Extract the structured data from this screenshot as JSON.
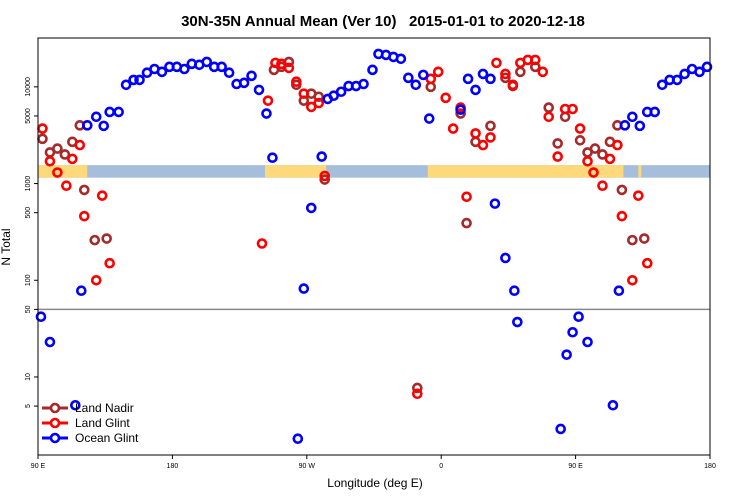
{
  "chart_data": {
    "type": "scatter",
    "title": "30N-35N Annual Mean (Ver 10)   2015-01-01 to 2020-12-18",
    "xlabel": "Longitude (deg E)",
    "ylabel": "N Total",
    "x_units": "degrees east, unwrapped (90 E through 180 through 0 to 180 again)",
    "xlim": [
      90,
      540
    ],
    "ylim": [
      1.56,
      32000
    ],
    "y_scale": "log",
    "x_ticks": [
      {
        "value": 90,
        "label": "90 E"
      },
      {
        "value": 180,
        "label": "180"
      },
      {
        "value": 270,
        "label": "90 W"
      },
      {
        "value": 360,
        "label": "0"
      },
      {
        "value": 450,
        "label": "90 E"
      },
      {
        "value": 540,
        "label": "180"
      }
    ],
    "y_ticks": [
      {
        "value": 5,
        "label": "5"
      },
      {
        "value": 10,
        "label": "10"
      },
      {
        "value": 50,
        "label": "50"
      },
      {
        "value": 100,
        "label": "100"
      },
      {
        "value": 500,
        "label": "500"
      },
      {
        "value": 1000,
        "label": "1000"
      },
      {
        "value": 5000,
        "label": "5000"
      },
      {
        "value": 10000,
        "label": "10000"
      }
    ],
    "reference_line": {
      "y": 50,
      "color": "#888888"
    },
    "land_mask": {
      "y_range": [
        1150,
        1550
      ],
      "land_color": "#FDD97C",
      "ocean_color": "#A6BDDB",
      "land_segments": [
        [
          90,
          123
        ],
        [
          242,
          283
        ],
        [
          351,
          482
        ],
        [
          492,
          494
        ]
      ]
    },
    "legend": {
      "position": "bottom-left"
    },
    "series": [
      {
        "name": "Land Nadir",
        "color": "#A52A2A",
        "points": [
          [
            93,
            2900
          ],
          [
            98,
            2100
          ],
          [
            103,
            2300
          ],
          [
            108,
            2000
          ],
          [
            113,
            2700
          ],
          [
            118,
            4000
          ],
          [
            121,
            860
          ],
          [
            128,
            260
          ],
          [
            136,
            270
          ],
          [
            248,
            15000
          ],
          [
            253,
            16100
          ],
          [
            258,
            18100
          ],
          [
            263,
            10500
          ],
          [
            268,
            7200
          ],
          [
            273,
            8500
          ],
          [
            278,
            7900
          ],
          [
            282,
            1100
          ],
          [
            344,
            7.7
          ],
          [
            353,
            10000
          ],
          [
            373,
            5300
          ],
          [
            377,
            390
          ],
          [
            383,
            2700
          ],
          [
            393,
            3950
          ],
          [
            403,
            12400
          ],
          [
            408,
            10200
          ],
          [
            413,
            14300
          ],
          [
            423,
            16100
          ],
          [
            432,
            6100
          ],
          [
            438,
            2600
          ],
          [
            443,
            4900
          ],
          [
            453,
            2800
          ],
          [
            458,
            2100
          ],
          [
            463,
            2300
          ],
          [
            468,
            2000
          ],
          [
            473,
            2700
          ],
          [
            478,
            4000
          ],
          [
            481,
            860
          ],
          [
            488,
            260
          ],
          [
            496,
            270
          ]
        ]
      },
      {
        "name": "Land Glint",
        "color": "#FF0000",
        "points": [
          [
            93,
            3700
          ],
          [
            98,
            1700
          ],
          [
            103,
            1300
          ],
          [
            109,
            950
          ],
          [
            113,
            1800
          ],
          [
            118,
            2500
          ],
          [
            121,
            460
          ],
          [
            129,
            100
          ],
          [
            133,
            750
          ],
          [
            138,
            150
          ],
          [
            240,
            240
          ],
          [
            244,
            7200
          ],
          [
            249,
            17700
          ],
          [
            253,
            17300
          ],
          [
            258,
            15700
          ],
          [
            263,
            11300
          ],
          [
            268,
            8500
          ],
          [
            273,
            6200
          ],
          [
            278,
            6800
          ],
          [
            282,
            1200
          ],
          [
            344,
            6.7
          ],
          [
            353,
            12100
          ],
          [
            358,
            14300
          ],
          [
            363,
            7700
          ],
          [
            368,
            3700
          ],
          [
            373,
            6100
          ],
          [
            377,
            730
          ],
          [
            383,
            3300
          ],
          [
            388,
            2500
          ],
          [
            393,
            3000
          ],
          [
            397,
            17700
          ],
          [
            403,
            13600
          ],
          [
            408,
            10500
          ],
          [
            413,
            17700
          ],
          [
            418,
            19000
          ],
          [
            423,
            19000
          ],
          [
            428,
            14300
          ],
          [
            432,
            4900
          ],
          [
            438,
            1900
          ],
          [
            443,
            5900
          ],
          [
            448,
            5900
          ],
          [
            453,
            3700
          ],
          [
            458,
            1700
          ],
          [
            462,
            1300
          ],
          [
            468,
            950
          ],
          [
            473,
            1800
          ],
          [
            478,
            2500
          ],
          [
            481,
            460
          ],
          [
            488,
            100
          ],
          [
            492,
            750
          ],
          [
            498,
            150
          ]
        ]
      },
      {
        "name": "Ocean Glint",
        "color": "#0000FF",
        "points": [
          [
            92,
            42
          ],
          [
            98,
            23
          ],
          [
            115,
            5.1
          ],
          [
            119,
            78
          ],
          [
            123,
            4000
          ],
          [
            129,
            4900
          ],
          [
            134,
            3950
          ],
          [
            138,
            5500
          ],
          [
            144,
            5500
          ],
          [
            149,
            10500
          ],
          [
            154,
            11800
          ],
          [
            158,
            11800
          ],
          [
            163,
            14000
          ],
          [
            168,
            15300
          ],
          [
            173,
            14300
          ],
          [
            178,
            16100
          ],
          [
            183,
            16100
          ],
          [
            188,
            15300
          ],
          [
            193,
            17300
          ],
          [
            198,
            16900
          ],
          [
            203,
            18100
          ],
          [
            208,
            16100
          ],
          [
            213,
            16100
          ],
          [
            218,
            14000
          ],
          [
            223,
            10700
          ],
          [
            228,
            11000
          ],
          [
            233,
            13000
          ],
          [
            238,
            9300
          ],
          [
            243,
            5300
          ],
          [
            247,
            1850
          ],
          [
            264,
            2.3
          ],
          [
            268,
            82
          ],
          [
            273,
            560
          ],
          [
            280,
            1900
          ],
          [
            284,
            7500
          ],
          [
            288,
            8100
          ],
          [
            293,
            8900
          ],
          [
            298,
            10200
          ],
          [
            303,
            10200
          ],
          [
            308,
            10700
          ],
          [
            314,
            15000
          ],
          [
            318,
            21900
          ],
          [
            323,
            21400
          ],
          [
            328,
            20400
          ],
          [
            333,
            19500
          ],
          [
            338,
            12400
          ],
          [
            343,
            10500
          ],
          [
            348,
            13300
          ],
          [
            352,
            4700
          ],
          [
            373,
            5800
          ],
          [
            378,
            12100
          ],
          [
            383,
            9300
          ],
          [
            388,
            13600
          ],
          [
            393,
            12100
          ],
          [
            396,
            620
          ],
          [
            403,
            170
          ],
          [
            409,
            78
          ],
          [
            411,
            37
          ],
          [
            440,
            2.9
          ],
          [
            444,
            17
          ],
          [
            448,
            29
          ],
          [
            452,
            42
          ],
          [
            458,
            23
          ],
          [
            475,
            5.1
          ],
          [
            479,
            78
          ],
          [
            483,
            4000
          ],
          [
            488,
            4900
          ],
          [
            493,
            3950
          ],
          [
            498,
            5500
          ],
          [
            503,
            5500
          ],
          [
            508,
            10500
          ],
          [
            513,
            11800
          ],
          [
            518,
            11800
          ],
          [
            523,
            13600
          ],
          [
            528,
            15300
          ],
          [
            533,
            14300
          ],
          [
            538,
            16100
          ]
        ]
      }
    ]
  }
}
